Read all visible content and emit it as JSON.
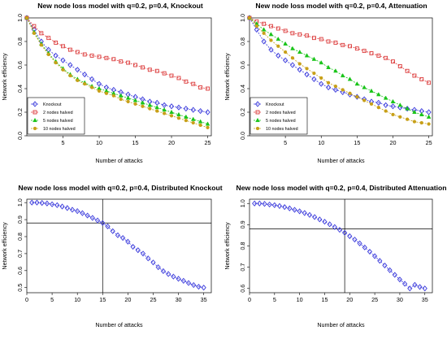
{
  "chart_data": [
    {
      "type": "line",
      "title": "New node loss model with q=0.2, p=0.4, Knockout",
      "xlabel": "Number of attacks",
      "ylabel": "Network efficiency",
      "xlim": [
        0,
        25.5
      ],
      "ylim": [
        0,
        1.0
      ],
      "xticks": [
        5,
        10,
        15,
        20,
        25
      ],
      "yticks": [
        0.0,
        0.2,
        0.4,
        0.6,
        0.8,
        1.0
      ],
      "grid": false,
      "legend": "bottom-left",
      "x": [
        0,
        1,
        2,
        3,
        4,
        5,
        6,
        7,
        8,
        9,
        10,
        11,
        12,
        13,
        14,
        15,
        16,
        17,
        18,
        19,
        20,
        21,
        22,
        23,
        24,
        25
      ],
      "series": [
        {
          "name": "Knockout",
          "color": "#3b3bdc",
          "marker": "diamond",
          "values": [
            1.0,
            0.9,
            0.8,
            0.73,
            0.68,
            0.64,
            0.6,
            0.56,
            0.52,
            0.48,
            0.44,
            0.41,
            0.39,
            0.37,
            0.35,
            0.33,
            0.31,
            0.29,
            0.28,
            0.26,
            0.25,
            0.24,
            0.23,
            0.22,
            0.21,
            0.2
          ]
        },
        {
          "name": "2 nodes halved",
          "color": "#dc3b3b",
          "marker": "square",
          "values": [
            1.0,
            0.93,
            0.87,
            0.83,
            0.79,
            0.76,
            0.73,
            0.71,
            0.69,
            0.68,
            0.67,
            0.66,
            0.65,
            0.63,
            0.62,
            0.6,
            0.58,
            0.56,
            0.55,
            0.53,
            0.51,
            0.49,
            0.46,
            0.44,
            0.41,
            0.4
          ]
        },
        {
          "name": "5 nodes halved",
          "color": "#19c419",
          "marker": "triangle",
          "values": [
            1.0,
            0.88,
            0.78,
            0.7,
            0.63,
            0.57,
            0.52,
            0.48,
            0.45,
            0.42,
            0.4,
            0.38,
            0.36,
            0.34,
            0.32,
            0.3,
            0.28,
            0.26,
            0.24,
            0.22,
            0.2,
            0.18,
            0.16,
            0.14,
            0.12,
            0.1
          ]
        },
        {
          "name": "10 nodes halved",
          "color": "#c8a018",
          "marker": "circle",
          "values": [
            1.0,
            0.87,
            0.77,
            0.69,
            0.62,
            0.56,
            0.51,
            0.47,
            0.44,
            0.41,
            0.38,
            0.36,
            0.34,
            0.31,
            0.29,
            0.27,
            0.25,
            0.23,
            0.21,
            0.19,
            0.17,
            0.15,
            0.13,
            0.11,
            0.09,
            0.07
          ]
        }
      ]
    },
    {
      "type": "line",
      "title": "New node loss model with q=0.2, p=0.4, Attenuation",
      "xlabel": "Number of attacks",
      "ylabel": "Network efficiency",
      "xlim": [
        0,
        25.5
      ],
      "ylim": [
        0,
        1.0
      ],
      "xticks": [
        5,
        10,
        15,
        20,
        25
      ],
      "yticks": [
        0.0,
        0.2,
        0.4,
        0.6,
        0.8,
        1.0
      ],
      "grid": false,
      "legend": "bottom-left",
      "x": [
        0,
        1,
        2,
        3,
        4,
        5,
        6,
        7,
        8,
        9,
        10,
        11,
        12,
        13,
        14,
        15,
        16,
        17,
        18,
        19,
        20,
        21,
        22,
        23,
        24,
        25
      ],
      "series": [
        {
          "name": "Knockout",
          "color": "#3b3bdc",
          "marker": "diamond",
          "values": [
            1.0,
            0.9,
            0.8,
            0.73,
            0.68,
            0.64,
            0.6,
            0.56,
            0.52,
            0.48,
            0.44,
            0.41,
            0.39,
            0.37,
            0.35,
            0.33,
            0.31,
            0.29,
            0.28,
            0.26,
            0.25,
            0.24,
            0.23,
            0.22,
            0.21,
            0.2
          ]
        },
        {
          "name": "2 nodes halved",
          "color": "#dc3b3b",
          "marker": "square",
          "values": [
            1.0,
            0.97,
            0.95,
            0.93,
            0.91,
            0.89,
            0.87,
            0.86,
            0.85,
            0.83,
            0.82,
            0.8,
            0.79,
            0.77,
            0.76,
            0.74,
            0.72,
            0.7,
            0.68,
            0.66,
            0.63,
            0.59,
            0.55,
            0.51,
            0.48,
            0.45
          ]
        },
        {
          "name": "5 nodes halved",
          "color": "#19c419",
          "marker": "triangle",
          "values": [
            1.0,
            0.95,
            0.9,
            0.86,
            0.82,
            0.78,
            0.74,
            0.71,
            0.68,
            0.65,
            0.62,
            0.58,
            0.55,
            0.51,
            0.48,
            0.44,
            0.41,
            0.38,
            0.35,
            0.32,
            0.29,
            0.26,
            0.23,
            0.2,
            0.18,
            0.16
          ]
        },
        {
          "name": "10 nodes halved",
          "color": "#c8a018",
          "marker": "circle",
          "values": [
            1.0,
            0.93,
            0.87,
            0.81,
            0.76,
            0.71,
            0.66,
            0.61,
            0.57,
            0.53,
            0.49,
            0.45,
            0.42,
            0.39,
            0.36,
            0.33,
            0.3,
            0.27,
            0.24,
            0.21,
            0.18,
            0.16,
            0.14,
            0.12,
            0.11,
            0.1
          ]
        }
      ]
    },
    {
      "type": "line",
      "title": "New node loss model with q=0.2, p=0.4, Distributed Knockout",
      "xlabel": "Number of attacks",
      "ylabel": "Network efficiency",
      "xlim": [
        0,
        36.5
      ],
      "ylim": [
        0.47,
        1.02
      ],
      "xticks": [
        0,
        5,
        10,
        15,
        20,
        25,
        30,
        35
      ],
      "yticks": [
        0.5,
        0.6,
        0.7,
        0.8,
        0.9,
        1.0
      ],
      "grid": false,
      "reference_lines": {
        "x": 15,
        "y": 0.88
      },
      "x": [
        1,
        2,
        3,
        4,
        5,
        6,
        7,
        8,
        9,
        10,
        11,
        12,
        13,
        14,
        15,
        16,
        17,
        18,
        19,
        20,
        21,
        22,
        23,
        24,
        25,
        26,
        27,
        28,
        29,
        30,
        31,
        32,
        33,
        34,
        35
      ],
      "series": [
        {
          "name": "",
          "color": "#3b3bdc",
          "marker": "diamond",
          "values": [
            1.0,
            1.0,
            0.998,
            0.995,
            0.99,
            0.985,
            0.977,
            0.968,
            0.958,
            0.95,
            0.938,
            0.924,
            0.91,
            0.895,
            0.88,
            0.86,
            0.832,
            0.808,
            0.792,
            0.77,
            0.74,
            0.72,
            0.7,
            0.672,
            0.648,
            0.62,
            0.597,
            0.58,
            0.565,
            0.552,
            0.54,
            0.527,
            0.515,
            0.505,
            0.5
          ]
        }
      ]
    },
    {
      "type": "line",
      "title": "New node loss model with q=0.2, p=0.4, Distributed Attenuation",
      "xlabel": "Number of attacks",
      "ylabel": "Network efficiency",
      "xlim": [
        0,
        36.5
      ],
      "ylim": [
        0.58,
        1.02
      ],
      "xticks": [
        0,
        5,
        10,
        15,
        20,
        25,
        30,
        35
      ],
      "yticks": [
        0.6,
        0.7,
        0.8,
        0.9,
        1.0
      ],
      "grid": false,
      "reference_lines": {
        "x": 19,
        "y": 0.88
      },
      "x": [
        1,
        2,
        3,
        4,
        5,
        6,
        7,
        8,
        9,
        10,
        11,
        12,
        13,
        14,
        15,
        16,
        17,
        18,
        19,
        20,
        21,
        22,
        23,
        24,
        25,
        26,
        27,
        28,
        29,
        30,
        31,
        32,
        33,
        34,
        35
      ],
      "series": [
        {
          "name": "",
          "color": "#3b3bdc",
          "marker": "diamond",
          "values": [
            1.0,
            1.0,
            0.998,
            0.995,
            0.992,
            0.988,
            0.983,
            0.977,
            0.97,
            0.963,
            0.955,
            0.946,
            0.936,
            0.925,
            0.914,
            0.902,
            0.889,
            0.876,
            0.862,
            0.846,
            0.83,
            0.812,
            0.793,
            0.773,
            0.752,
            0.73,
            0.708,
            0.686,
            0.664,
            0.642,
            0.622,
            0.6,
            0.617,
            0.607,
            0.6
          ]
        }
      ]
    }
  ]
}
